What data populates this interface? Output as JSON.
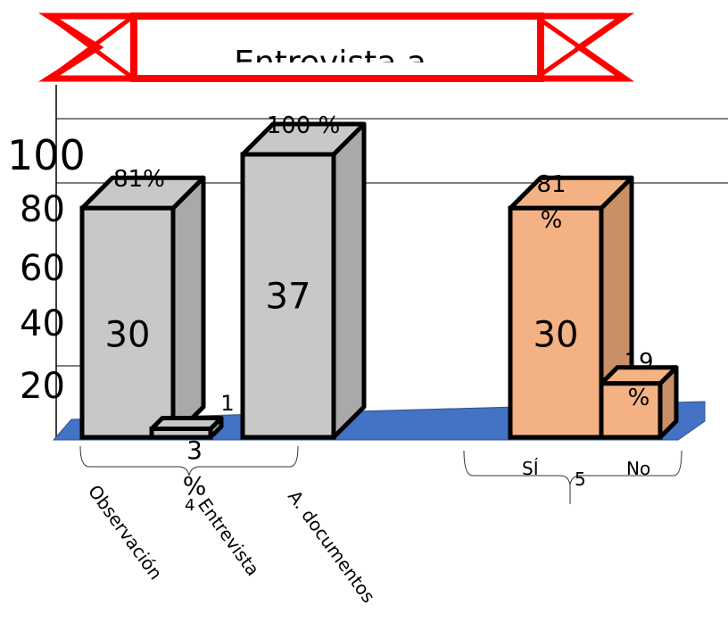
{
  "banner": {
    "title": "Entrevista a"
  },
  "chart_data": {
    "type": "bar",
    "three_d": true,
    "ylim": [
      0,
      100
    ],
    "y_ticks": [
      "100",
      "80",
      "60",
      "40",
      "20"
    ],
    "groups": [
      {
        "categories": [
          "Observación",
          "Entrevista",
          "A. documentos"
        ],
        "values": [
          81,
          3,
          100
        ],
        "bar_labels": [
          "30",
          "1",
          "37"
        ],
        "percent_labels": [
          "81%",
          "3\n%",
          "100 %"
        ],
        "color": "#c8c8c8",
        "side_color": "#a9a9a9"
      },
      {
        "categories": [
          "SÍ",
          "No"
        ],
        "values": [
          81,
          19
        ],
        "bar_labels": [
          "30",
          ""
        ],
        "percent_labels": [
          "81\n%",
          "19\n%"
        ],
        "color": "#f4b183",
        "side_color": "#c98f66"
      }
    ],
    "annotations": [
      "4",
      "5"
    ],
    "floor_color": "#4472c4",
    "grid": true
  }
}
